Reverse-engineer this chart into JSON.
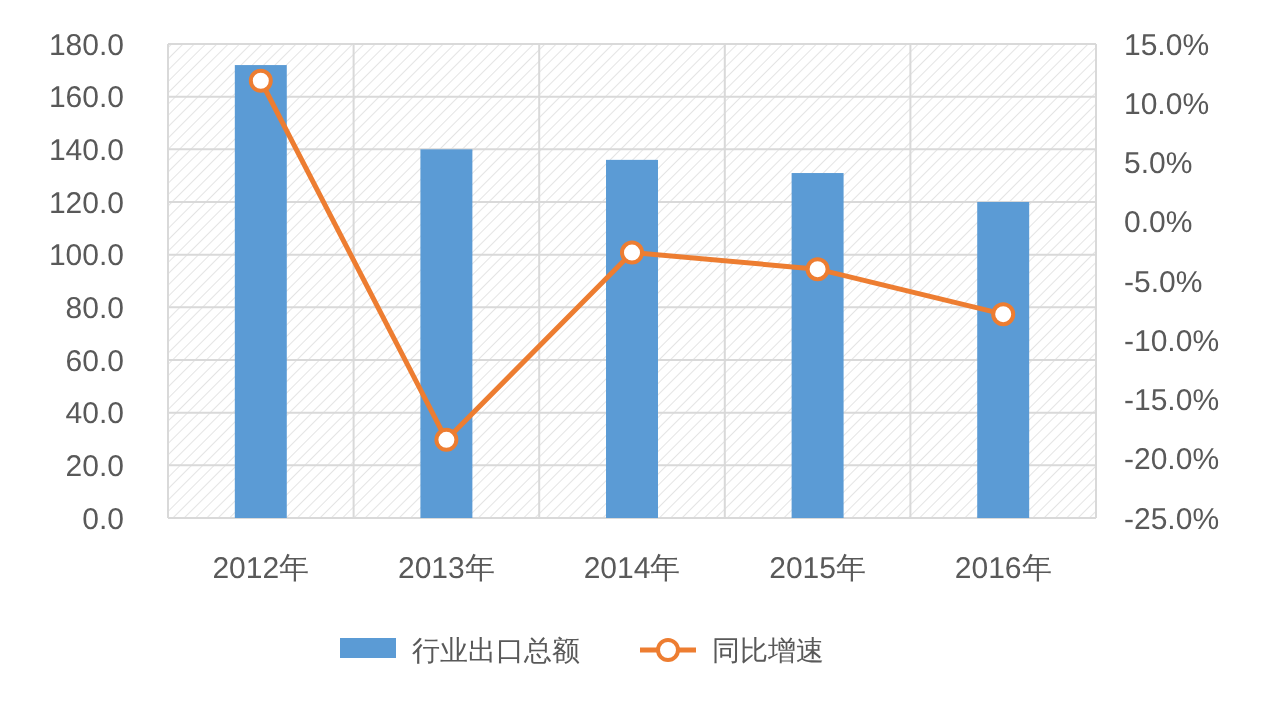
{
  "chart_data": {
    "type": "bar",
    "categories": [
      "2012年",
      "2013年",
      "2014年",
      "2015年",
      "2016年"
    ],
    "series": [
      {
        "name": "行业出口总额",
        "color": "#5b9bd5",
        "values": [
          172,
          140,
          136,
          131,
          120
        ]
      },
      {
        "name": "同比增速",
        "type": "line",
        "axis": "y2",
        "color": "#ed7d31",
        "marker": "circle",
        "values": [
          11.9,
          -18.4,
          -2.6,
          -4.0,
          -7.8
        ]
      }
    ],
    "ylim": [
      0,
      180
    ],
    "yticks": [
      {
        "value": 0,
        "label": "0.0"
      },
      {
        "value": 20,
        "label": "20.0"
      },
      {
        "value": 40,
        "label": "40.0"
      },
      {
        "value": 60,
        "label": "60.0"
      },
      {
        "value": 80,
        "label": "80.0"
      },
      {
        "value": 100,
        "label": "100.0"
      },
      {
        "value": 120,
        "label": "120.0"
      },
      {
        "value": 140,
        "label": "140.0"
      },
      {
        "value": 160,
        "label": "160.0"
      },
      {
        "value": 180,
        "label": "180.0"
      }
    ],
    "y2lim": [
      -25,
      15
    ],
    "y2ticks": [
      {
        "value": -25,
        "label": "-25.0%"
      },
      {
        "value": -20,
        "label": "-20.0%"
      },
      {
        "value": -15,
        "label": "-15.0%"
      },
      {
        "value": -10,
        "label": "-10.0%"
      },
      {
        "value": -5,
        "label": "-5.0%"
      },
      {
        "value": 0,
        "label": "0.0%"
      },
      {
        "value": 5,
        "label": "5.0%"
      },
      {
        "value": 10,
        "label": "10.0%"
      },
      {
        "value": 15,
        "label": "15.0%"
      }
    ],
    "grid": true,
    "legend": "bottom"
  }
}
